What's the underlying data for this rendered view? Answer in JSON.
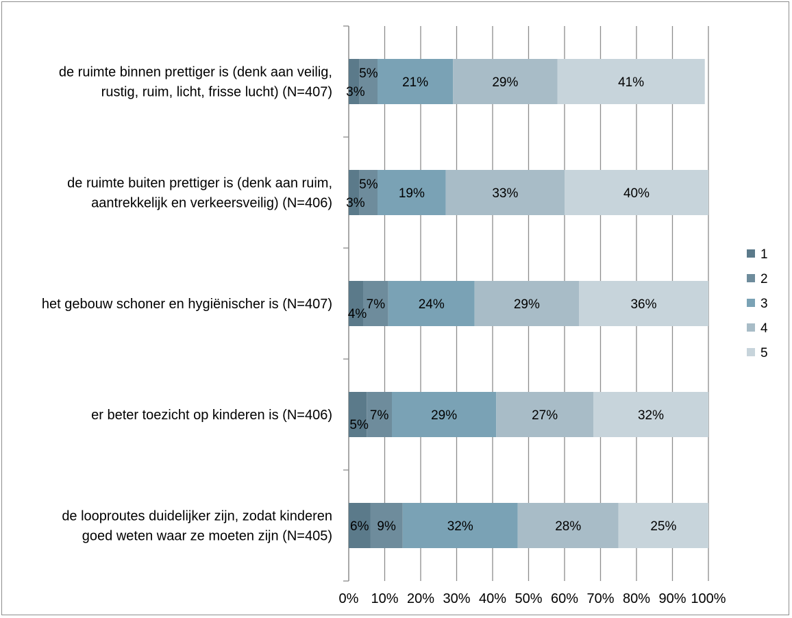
{
  "chart_data": {
    "type": "bar",
    "orientation": "horizontal",
    "stacked": "percent",
    "title": "",
    "xlabel": "",
    "ylabel": "",
    "xlim": [
      0,
      100
    ],
    "grid": true,
    "legend_position": "right",
    "categories": [
      [
        "de ruimte binnen prettiger is (denk aan veilig,",
        "rustig, ruim, licht, frisse lucht) (N=407)"
      ],
      [
        "de ruimte buiten prettiger is (denk aan ruim,",
        "aantrekkelijk en verkeersveilig) (N=406)"
      ],
      [
        "het gebouw schoner en hygiënischer is (N=407)"
      ],
      [
        "er beter toezicht op kinderen is (N=406)"
      ],
      [
        "de looproutes duidelijker zijn, zodat kinderen",
        "goed weten waar ze moeten zijn (N=405)"
      ]
    ],
    "x_ticks": [
      "0%",
      "10%",
      "20%",
      "30%",
      "40%",
      "50%",
      "60%",
      "70%",
      "80%",
      "90%",
      "100%"
    ],
    "series": [
      {
        "name": "1",
        "color": "#5b7a8a",
        "values": [
          3,
          3,
          4,
          5,
          6
        ],
        "labels": [
          "3%",
          "3%",
          "4%",
          "5%",
          "6%"
        ]
      },
      {
        "name": "2",
        "color": "#6e8c9c",
        "values": [
          5,
          5,
          7,
          7,
          9
        ],
        "labels": [
          "5%",
          "5%",
          "7%",
          "7%",
          "9%"
        ]
      },
      {
        "name": "3",
        "color": "#7aa2b5",
        "values": [
          21,
          19,
          24,
          29,
          32
        ],
        "labels": [
          "21%",
          "19%",
          "24%",
          "29%",
          "32%"
        ]
      },
      {
        "name": "4",
        "color": "#a8bcc7",
        "values": [
          29,
          33,
          29,
          27,
          28
        ],
        "labels": [
          "29%",
          "33%",
          "29%",
          "27%",
          "28%"
        ]
      },
      {
        "name": "5",
        "color": "#c7d4db",
        "values": [
          41,
          40,
          36,
          32,
          25
        ],
        "labels": [
          "41%",
          "40%",
          "36%",
          "32%",
          "25%"
        ]
      }
    ]
  }
}
